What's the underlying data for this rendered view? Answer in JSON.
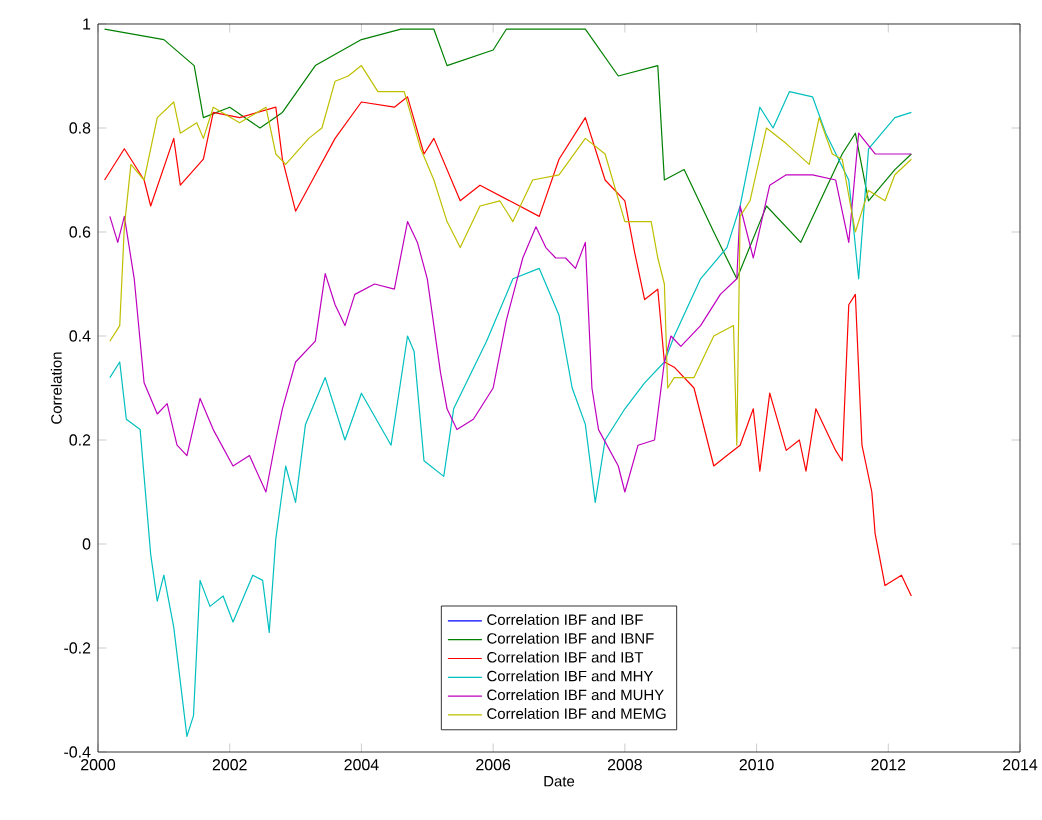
{
  "chart_data": {
    "type": "line",
    "xlabel": "Date",
    "ylabel": "Correlation",
    "xlim": [
      2000,
      2014
    ],
    "ylim": [
      -0.4,
      1
    ],
    "xticks": [
      2000,
      2002,
      2004,
      2006,
      2008,
      2010,
      2012,
      2014
    ],
    "yticks": [
      -0.4,
      -0.2,
      0,
      0.2,
      0.4,
      0.6,
      0.8,
      1
    ],
    "grid": false,
    "legend": "bottom",
    "marker": "none",
    "line_style": "solid",
    "series": [
      {
        "name": "Correlation IBF and IBF",
        "color": "#0000ff",
        "values": [
          null
        ]
      },
      {
        "name": "Correlation IBF and IBNF",
        "color": "#008000",
        "x": [
          2000.1,
          2001.0,
          2001.46,
          2001.6,
          2002.0,
          2002.46,
          2002.8,
          2003.3,
          2004.0,
          2004.6,
          2005.1,
          2005.3,
          2006.0,
          2006.2,
          2007.4,
          2007.9,
          2008.5,
          2008.6,
          2008.9,
          2009.35,
          2009.7,
          2010.15,
          2010.67,
          2011.3,
          2011.5,
          2011.7,
          2012.1,
          2012.35
        ],
        "values": [
          0.99,
          0.97,
          0.92,
          0.82,
          0.84,
          0.8,
          0.83,
          0.92,
          0.97,
          0.99,
          0.99,
          0.92,
          0.95,
          0.99,
          0.99,
          0.9,
          0.92,
          0.7,
          0.72,
          0.6,
          0.51,
          0.65,
          0.58,
          0.75,
          0.79,
          0.66,
          0.72,
          0.75
        ]
      },
      {
        "name": "Correlation IBF and IBT",
        "color": "#ff0000",
        "x": [
          2000.1,
          2000.4,
          2000.7,
          2000.8,
          2001.15,
          2001.25,
          2001.6,
          2001.75,
          2002.15,
          2002.7,
          2002.8,
          2003.0,
          2003.3,
          2003.6,
          2004.0,
          2004.5,
          2004.7,
          2004.95,
          2005.1,
          2005.5,
          2005.8,
          2006.7,
          2007.0,
          2007.4,
          2007.7,
          2008.0,
          2008.15,
          2008.3,
          2008.5,
          2008.6,
          2008.75,
          2009.05,
          2009.35,
          2009.55,
          2009.75,
          2009.95,
          2010.05,
          2010.2,
          2010.45,
          2010.65,
          2010.75,
          2010.9,
          2011.2,
          2011.3,
          2011.4,
          2011.5,
          2011.6,
          2011.75,
          2011.8,
          2011.95,
          2012.2,
          2012.35
        ],
        "values": [
          0.7,
          0.76,
          0.7,
          0.65,
          0.78,
          0.69,
          0.74,
          0.83,
          0.82,
          0.84,
          0.74,
          0.64,
          0.71,
          0.78,
          0.85,
          0.84,
          0.86,
          0.75,
          0.78,
          0.66,
          0.69,
          0.63,
          0.74,
          0.82,
          0.7,
          0.66,
          0.56,
          0.47,
          0.49,
          0.35,
          0.34,
          0.3,
          0.15,
          0.17,
          0.19,
          0.26,
          0.14,
          0.29,
          0.18,
          0.2,
          0.14,
          0.26,
          0.18,
          0.16,
          0.46,
          0.48,
          0.19,
          0.1,
          0.02,
          -0.08,
          -0.06,
          -0.1
        ]
      },
      {
        "name": "Correlation IBF and MHY",
        "color": "#00bfbf",
        "x": [
          2000.18,
          2000.33,
          2000.43,
          2000.64,
          2000.8,
          2000.9,
          2001.0,
          2001.15,
          2001.35,
          2001.45,
          2001.55,
          2001.7,
          2001.9,
          2002.05,
          2002.35,
          2002.5,
          2002.6,
          2002.7,
          2002.85,
          2003.0,
          2003.15,
          2003.45,
          2003.75,
          2004.0,
          2004.45,
          2004.7,
          2004.8,
          2004.95,
          2005.25,
          2005.4,
          2005.9,
          2006.3,
          2006.7,
          2006.9,
          2007.0,
          2007.2,
          2007.4,
          2007.55,
          2007.7,
          2008.0,
          2008.3,
          2008.6,
          2008.75,
          2009.15,
          2009.55,
          2009.75,
          2010.05,
          2010.25,
          2010.5,
          2010.85,
          2011.05,
          2011.4,
          2011.55,
          2011.7,
          2011.9,
          2012.1,
          2012.35
        ],
        "values": [
          0.32,
          0.35,
          0.24,
          0.22,
          -0.02,
          -0.11,
          -0.06,
          -0.16,
          -0.37,
          -0.33,
          -0.07,
          -0.12,
          -0.1,
          -0.15,
          -0.06,
          -0.07,
          -0.17,
          0.01,
          0.15,
          0.08,
          0.23,
          0.32,
          0.2,
          0.29,
          0.19,
          0.4,
          0.37,
          0.16,
          0.13,
          0.26,
          0.39,
          0.51,
          0.53,
          0.47,
          0.44,
          0.3,
          0.23,
          0.08,
          0.2,
          0.26,
          0.31,
          0.35,
          0.4,
          0.51,
          0.57,
          0.65,
          0.84,
          0.8,
          0.87,
          0.86,
          0.79,
          0.7,
          0.51,
          0.76,
          0.79,
          0.82,
          0.83
        ]
      },
      {
        "name": "Correlation IBF and MUHY",
        "color": "#bf00bf",
        "x": [
          2000.18,
          2000.3,
          2000.4,
          2000.55,
          2000.7,
          2000.9,
          2001.05,
          2001.2,
          2001.35,
          2001.55,
          2001.75,
          2002.05,
          2002.3,
          2002.55,
          2002.7,
          2002.8,
          2003.0,
          2003.3,
          2003.45,
          2003.6,
          2003.75,
          2003.9,
          2004.2,
          2004.5,
          2004.7,
          2004.85,
          2005.0,
          2005.2,
          2005.3,
          2005.45,
          2005.7,
          2006.0,
          2006.2,
          2006.45,
          2006.65,
          2006.8,
          2006.95,
          2007.1,
          2007.25,
          2007.4,
          2007.5,
          2007.6,
          2007.9,
          2008.0,
          2008.2,
          2008.45,
          2008.6,
          2008.7,
          2008.85,
          2009.15,
          2009.45,
          2009.7,
          2009.75,
          2009.95,
          2010.2,
          2010.45,
          2010.85,
          2011.2,
          2011.4,
          2011.55,
          2011.8,
          2012.35
        ],
        "values": [
          0.63,
          0.58,
          0.63,
          0.51,
          0.31,
          0.25,
          0.27,
          0.19,
          0.17,
          0.28,
          0.22,
          0.15,
          0.17,
          0.1,
          0.2,
          0.26,
          0.35,
          0.39,
          0.52,
          0.46,
          0.42,
          0.48,
          0.5,
          0.49,
          0.62,
          0.58,
          0.51,
          0.33,
          0.26,
          0.22,
          0.24,
          0.3,
          0.43,
          0.55,
          0.61,
          0.57,
          0.55,
          0.55,
          0.53,
          0.58,
          0.3,
          0.22,
          0.15,
          0.1,
          0.19,
          0.2,
          0.35,
          0.4,
          0.38,
          0.42,
          0.48,
          0.51,
          0.65,
          0.55,
          0.69,
          0.71,
          0.71,
          0.7,
          0.58,
          0.79,
          0.75,
          0.75
        ]
      },
      {
        "name": "Correlation IBF and MEMG",
        "color": "#bfbf00",
        "x": [
          2000.18,
          2000.33,
          2000.4,
          2000.5,
          2000.7,
          2000.9,
          2001.15,
          2001.25,
          2001.5,
          2001.6,
          2001.75,
          2002.15,
          2002.55,
          2002.7,
          2002.85,
          2003.2,
          2003.4,
          2003.6,
          2003.8,
          2004.0,
          2004.25,
          2004.65,
          2004.9,
          2005.1,
          2005.3,
          2005.5,
          2005.8,
          2006.1,
          2006.3,
          2006.6,
          2007.0,
          2007.4,
          2007.7,
          2008.0,
          2008.4,
          2008.5,
          2008.6,
          2008.65,
          2008.75,
          2009.05,
          2009.35,
          2009.65,
          2009.7,
          2009.75,
          2009.9,
          2010.15,
          2010.45,
          2010.8,
          2010.95,
          2011.15,
          2011.3,
          2011.5,
          2011.7,
          2011.95,
          2012.1,
          2012.35
        ],
        "values": [
          0.39,
          0.42,
          0.61,
          0.73,
          0.7,
          0.82,
          0.85,
          0.79,
          0.81,
          0.78,
          0.84,
          0.81,
          0.84,
          0.75,
          0.73,
          0.78,
          0.8,
          0.89,
          0.9,
          0.92,
          0.87,
          0.87,
          0.76,
          0.7,
          0.62,
          0.57,
          0.65,
          0.66,
          0.62,
          0.7,
          0.71,
          0.78,
          0.75,
          0.62,
          0.62,
          0.55,
          0.5,
          0.3,
          0.32,
          0.32,
          0.4,
          0.42,
          0.19,
          0.63,
          0.66,
          0.8,
          0.77,
          0.73,
          0.82,
          0.75,
          0.74,
          0.6,
          0.68,
          0.66,
          0.71,
          0.74
        ]
      }
    ]
  }
}
